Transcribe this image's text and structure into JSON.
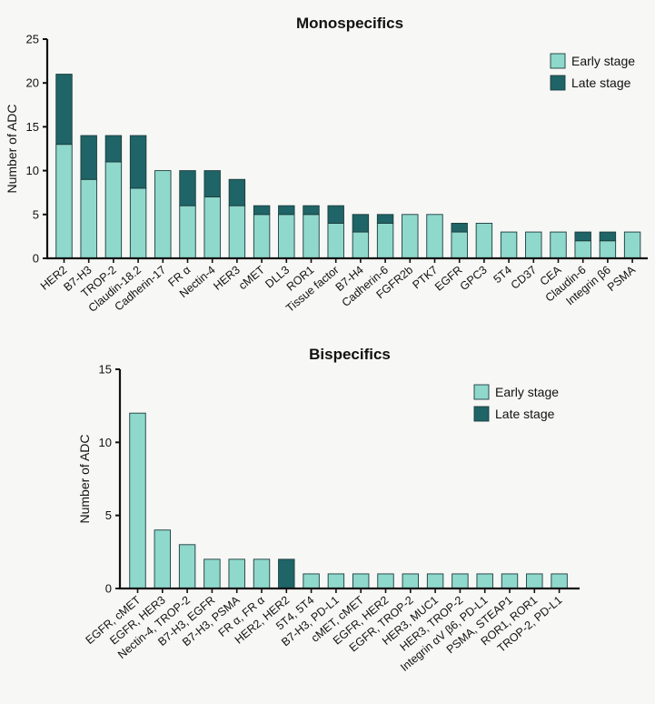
{
  "chart_data": [
    {
      "type": "bar",
      "stacked": true,
      "title": "Monospecifics",
      "xlabel": "",
      "ylabel": "Number of ADC",
      "ylim": [
        0,
        25
      ],
      "yticks": [
        0,
        5,
        10,
        15,
        20,
        25
      ],
      "legend_position": "top-right",
      "categories": [
        "HER2",
        "B7-H3",
        "TROP-2",
        "Claudin-18.2",
        "Cadherin-17",
        "FR α",
        "Nectin-4",
        "HER3",
        "cMET",
        "DLL3",
        "ROR1",
        "Tissue factor",
        "B7-H4",
        "Cadherin-6",
        "FGFR2b",
        "PTK7",
        "EGFR",
        "GPC3",
        "5T4",
        "CD37",
        "CEA",
        "Claudin-6",
        "Integrin β6",
        "PSMA"
      ],
      "series": [
        {
          "name": "Early stage",
          "color": "#8fd8cc",
          "values": [
            13,
            9,
            11,
            8,
            10,
            6,
            7,
            6,
            5,
            5,
            5,
            4,
            3,
            4,
            5,
            5,
            3,
            4,
            3,
            3,
            3,
            2,
            2,
            3
          ]
        },
        {
          "name": "Late stage",
          "color": "#1f6467",
          "values": [
            8,
            5,
            3,
            6,
            0,
            4,
            3,
            3,
            1,
            1,
            1,
            2,
            2,
            1,
            0,
            0,
            1,
            0,
            0,
            0,
            0,
            1,
            1,
            0
          ]
        }
      ]
    },
    {
      "type": "bar",
      "stacked": true,
      "title": "Bispecifics",
      "xlabel": "",
      "ylabel": "Number of ADC",
      "ylim": [
        0,
        15
      ],
      "yticks": [
        0,
        5,
        10,
        15
      ],
      "legend_position": "top-right",
      "categories": [
        "EGFR, cMET",
        "EGFR, HER3",
        "Nectin-4, TROP-2",
        "B7-H3, EGFR",
        "B7-H3, PSMA",
        "FR α, FR α",
        "HER2, HER2",
        "5T4, 5T4",
        "B7-H3, PD-L1",
        "cMET, cMET",
        "EGFR, HER2",
        "EGFR, TROP-2",
        "HER3, MUC1",
        "HER3, TROP-2",
        "Integrin αV β6, PD-L1",
        "PSMA, STEAP1",
        "ROR1, ROR1",
        "TROP-2, PD-L1"
      ],
      "series": [
        {
          "name": "Early stage",
          "color": "#8fd8cc",
          "values": [
            12,
            4,
            3,
            2,
            2,
            2,
            0,
            1,
            1,
            1,
            1,
            1,
            1,
            1,
            1,
            1,
            1,
            1
          ]
        },
        {
          "name": "Late stage",
          "color": "#1f6467",
          "values": [
            0,
            0,
            0,
            0,
            0,
            0,
            2,
            0,
            0,
            0,
            0,
            0,
            0,
            0,
            0,
            0,
            0,
            0
          ]
        }
      ]
    }
  ]
}
